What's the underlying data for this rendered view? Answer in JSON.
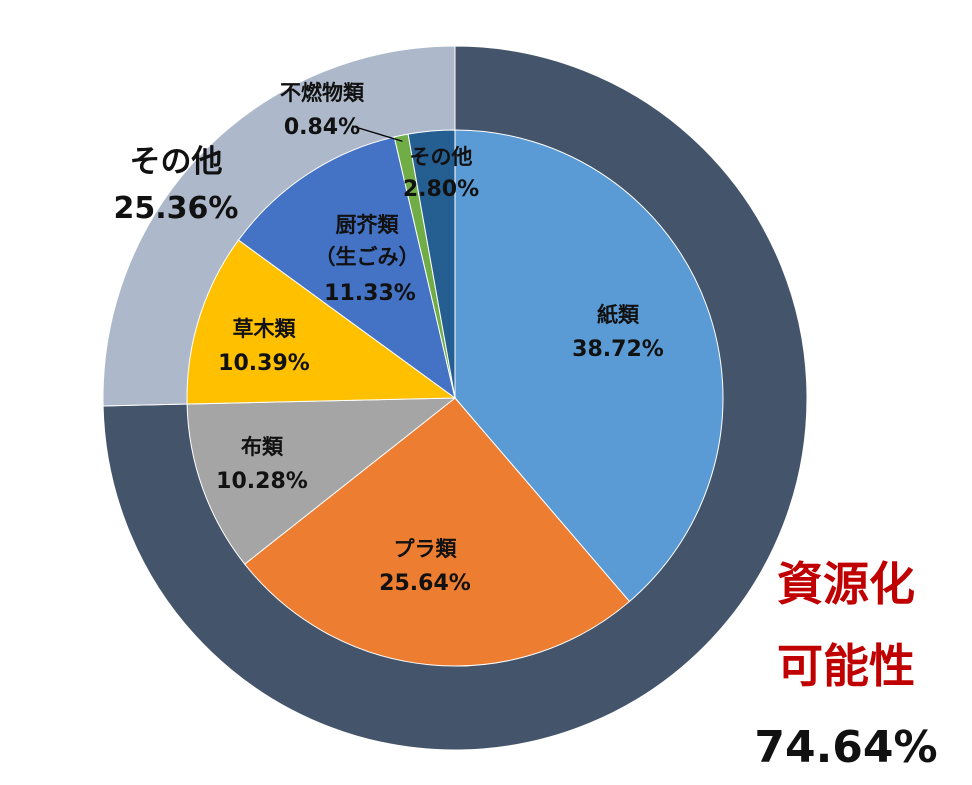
{
  "chart_data": {
    "type": "pie",
    "subtype": "nested-donut",
    "inner": [
      {
        "name": "紙類",
        "value": 38.72,
        "label": "38.72%",
        "color": "#5b9bd5"
      },
      {
        "name": "プラ類",
        "value": 25.64,
        "label": "25.64%",
        "color": "#ed7d31"
      },
      {
        "name": "布類",
        "value": 10.28,
        "label": "10.28%",
        "color": "#a5a5a5"
      },
      {
        "name": "草木類",
        "value": 10.39,
        "label": "10.39%",
        "color": "#ffc000"
      },
      {
        "name": "厨芥類",
        "name2": "（生ごみ）",
        "value": 11.33,
        "label": "11.33%",
        "color": "#4472c4"
      },
      {
        "name": "不燃物類",
        "value": 0.84,
        "label": "0.84%",
        "color": "#70ad47"
      },
      {
        "name": "その他",
        "value": 2.8,
        "label": "2.80%",
        "color": "#255e91"
      }
    ],
    "outer": [
      {
        "name_lines": [
          "資源化",
          "可能性"
        ],
        "value": 74.64,
        "label": "74.64%",
        "color": "#44546a"
      },
      {
        "name_lines": [
          "その他"
        ],
        "value": 25.36,
        "label": "25.36%",
        "color": "#adb9ca"
      }
    ]
  }
}
